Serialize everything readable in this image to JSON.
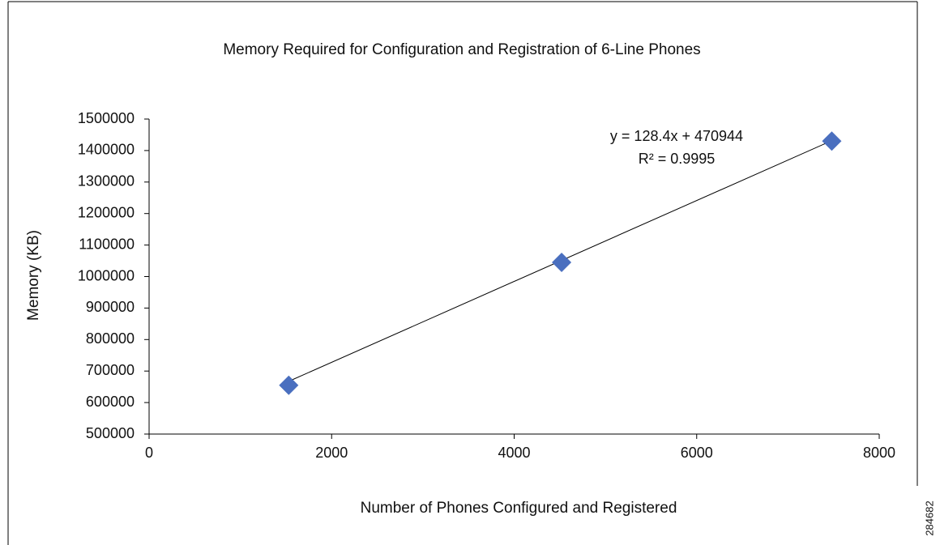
{
  "chart_data": {
    "type": "scatter",
    "title": "Memory Required for Configuration and Registration of 6-Line Phones",
    "xlabel": "Number of Phones Configured and Registered",
    "ylabel": "Memory (KB)",
    "series": [
      {
        "name": "Memory",
        "color": "#4a6fbf",
        "x": [
          1530,
          4520,
          7480
        ],
        "values": [
          655000,
          1045000,
          1430000
        ]
      }
    ],
    "trendline": {
      "slope": 128.4,
      "intercept": 470944,
      "equation": "y = 128.4x + 470944",
      "r2": "R² = 0.9995"
    },
    "xlim": [
      0,
      8000
    ],
    "xticks": [
      0,
      2000,
      4000,
      6000,
      8000
    ],
    "ylim": [
      500000,
      1500000
    ],
    "yticks": [
      500000,
      600000,
      700000,
      800000,
      900000,
      1000000,
      1100000,
      1200000,
      1300000,
      1400000,
      1500000
    ],
    "grid": false
  },
  "figure_id": "284682"
}
